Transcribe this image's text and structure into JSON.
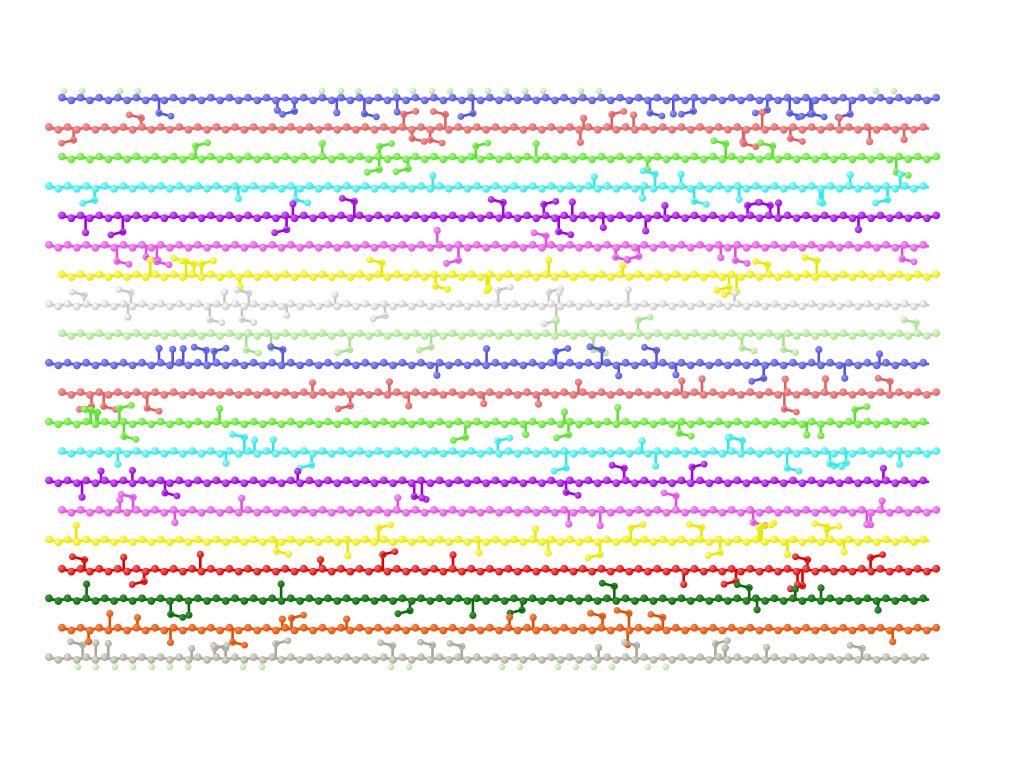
{
  "scene": {
    "background": "#ffffff",
    "description_none": "",
    "chains": [
      {
        "color": "#5454e0",
        "hi": "#9a9aff"
      },
      {
        "color": "#e06060",
        "hi": "#ff9c9c"
      },
      {
        "color": "#5ee030",
        "hi": "#a8ff84"
      },
      {
        "color": "#30e8e8",
        "hi": "#a0ffff"
      },
      {
        "color": "#a000e0",
        "hi": "#d070ff"
      },
      {
        "color": "#e050e0",
        "hi": "#ffa0ff"
      },
      {
        "color": "#e8e800",
        "hi": "#ffff80"
      },
      {
        "color": "#c8c8c8",
        "hi": "#ffffff"
      },
      {
        "color": "#a8e090",
        "hi": "#e0ffd0"
      },
      {
        "color": "#5454e0",
        "hi": "#9a9aff"
      },
      {
        "color": "#e06060",
        "hi": "#ff9c9c"
      },
      {
        "color": "#5ee030",
        "hi": "#a8ff84"
      },
      {
        "color": "#30e8e8",
        "hi": "#a0ffff"
      },
      {
        "color": "#a000e0",
        "hi": "#d070ff"
      },
      {
        "color": "#e050e0",
        "hi": "#ffa0ff"
      },
      {
        "color": "#e8e800",
        "hi": "#ffff80"
      },
      {
        "color": "#e00000",
        "hi": "#ff7070"
      },
      {
        "color": "#0a6a0a",
        "hi": "#40a040"
      },
      {
        "color": "#e05000",
        "hi": "#ff9060"
      },
      {
        "color": "#a8a898",
        "hi": "#e0e0d8"
      }
    ],
    "endcap_color": "#a8e090"
  }
}
